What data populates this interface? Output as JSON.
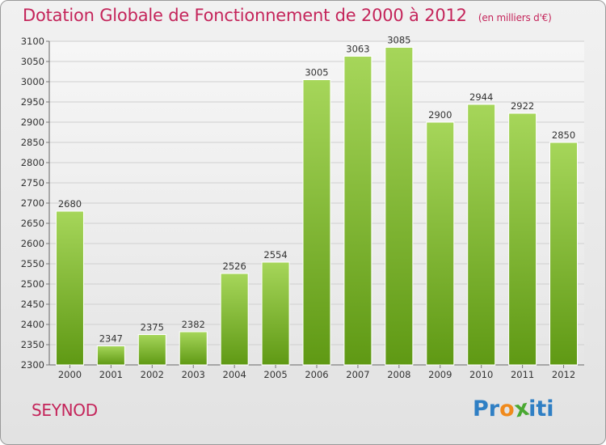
{
  "title": "Dotation Globale de Fonctionnement de 2000 à 2012",
  "unit": "(en milliers d'€)",
  "commune": "SEYNOD",
  "logo": {
    "text": "Proxiti",
    "letters": [
      "P",
      "r",
      "o",
      "x",
      "i",
      "t",
      "i"
    ],
    "colors": [
      "#2f7fc4",
      "#2f7fc4",
      "#f08a1c",
      "#4aa832",
      "#2f7fc4",
      "#2f7fc4",
      "#2f7fc4"
    ]
  },
  "colors": {
    "title": "#c4245a",
    "bar_light": "#a6d65a",
    "bar_dark": "#5f9914"
  },
  "chart_data": {
    "type": "bar",
    "categories": [
      "2000",
      "2001",
      "2002",
      "2003",
      "2004",
      "2005",
      "2006",
      "2007",
      "2008",
      "2009",
      "2010",
      "2011",
      "2012"
    ],
    "values": [
      2680,
      2347,
      2375,
      2382,
      2526,
      2554,
      3005,
      3063,
      3085,
      2900,
      2944,
      2922,
      2850
    ],
    "ylim": [
      2300,
      3100
    ],
    "yticks": [
      2300,
      2350,
      2400,
      2450,
      2500,
      2550,
      2600,
      2650,
      2700,
      2750,
      2800,
      2850,
      2900,
      2950,
      3000,
      3050,
      3100
    ],
    "grid": true,
    "data_labels": true
  }
}
